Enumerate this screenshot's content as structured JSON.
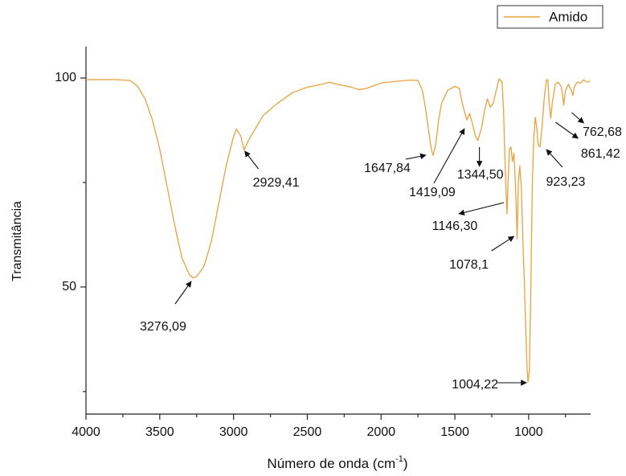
{
  "chart_data": {
    "type": "line",
    "xlabel": [
      "Número de onda (cm",
      "-1",
      ")"
    ],
    "ylabel": "Transmitância",
    "xlim": [
      4000,
      580
    ],
    "ylim": [
      19.6,
      107.5
    ],
    "xticks": [
      4000,
      3500,
      3000,
      2500,
      2000,
      1500,
      1000
    ],
    "xminor_ticks": [
      3750,
      3250,
      2750,
      2250,
      1750,
      1250,
      750
    ],
    "yticks": [
      50,
      100
    ],
    "yminor_ticks": [
      25,
      75
    ],
    "legend": "top-right",
    "series": [
      {
        "name": "Amido",
        "color": "#E8A23E",
        "x": [
          4000,
          3800,
          3700,
          3650,
          3600,
          3550,
          3500,
          3450,
          3400,
          3350,
          3300,
          3276.09,
          3250,
          3200,
          3150,
          3100,
          3050,
          3000,
          2980,
          2950,
          2929.41,
          2900,
          2850,
          2800,
          2700,
          2600,
          2500,
          2400,
          2350,
          2300,
          2200,
          2150,
          2100,
          2000,
          1900,
          1800,
          1750,
          1720,
          1700,
          1680,
          1660,
          1647.84,
          1630,
          1610,
          1590,
          1550,
          1500,
          1470,
          1450,
          1430,
          1419.09,
          1400,
          1380,
          1360,
          1344.5,
          1320,
          1300,
          1280,
          1260,
          1240,
          1220,
          1200,
          1180,
          1170,
          1160,
          1150,
          1146.3,
          1140,
          1130,
          1120,
          1110,
          1100,
          1090,
          1080,
          1078.1,
          1070,
          1060,
          1050,
          1040,
          1030,
          1020,
          1010,
          1004.22,
          995,
          985,
          975,
          965,
          955,
          945,
          935,
          923.23,
          910,
          895,
          880,
          870,
          861.42,
          850,
          840,
          820,
          800,
          780,
          770,
          762.68,
          750,
          730,
          710,
          700,
          690,
          670,
          650,
          630,
          600,
          585
        ],
        "values": [
          99.6,
          99.6,
          99.4,
          98,
          95,
          90,
          83,
          74,
          65,
          57,
          53,
          52.2,
          52.5,
          55,
          61,
          70,
          79,
          86,
          87.8,
          86,
          82.8,
          85,
          88,
          91,
          94,
          96.5,
          97.8,
          98.5,
          99,
          98.5,
          97.8,
          97.2,
          97.5,
          98.8,
          99.2,
          99.5,
          99.4,
          97,
          93,
          88,
          83,
          81.5,
          84,
          90,
          94,
          97,
          98,
          97.5,
          94,
          91.3,
          90,
          91.5,
          89,
          86,
          85,
          88,
          92,
          95,
          93,
          94,
          97,
          99.8,
          99,
          92,
          80,
          70,
          67.5,
          75,
          83,
          83.5,
          80,
          82,
          75,
          64,
          61.5,
          75,
          79,
          74,
          62,
          52,
          40,
          30,
          27.3,
          30,
          50,
          75,
          86,
          90.6,
          88,
          84,
          83.5,
          88,
          95,
          99.5,
          99.6,
          94,
          90.4,
          94,
          98.5,
          99,
          98,
          96,
          93.5,
          97,
          98.5,
          97,
          95.8,
          98,
          99,
          98.8,
          99.5,
          99,
          99.3
        ]
      }
    ],
    "annotations": [
      {
        "label": "3276,09",
        "x": 3276.09
      },
      {
        "label": "2929,41",
        "x": 2929.41
      },
      {
        "label": "1647,84",
        "x": 1647.84
      },
      {
        "label": "1419,09",
        "x": 1419.09
      },
      {
        "label": "1344,50",
        "x": 1344.5
      },
      {
        "label": "1146,30",
        "x": 1146.3
      },
      {
        "label": "1078,1",
        "x": 1078.1
      },
      {
        "label": "1004,22",
        "x": 1004.22
      },
      {
        "label": "923,23",
        "x": 923.23
      },
      {
        "label": "861,42",
        "x": 861.42
      },
      {
        "label": "762,68",
        "x": 762.68
      }
    ]
  }
}
